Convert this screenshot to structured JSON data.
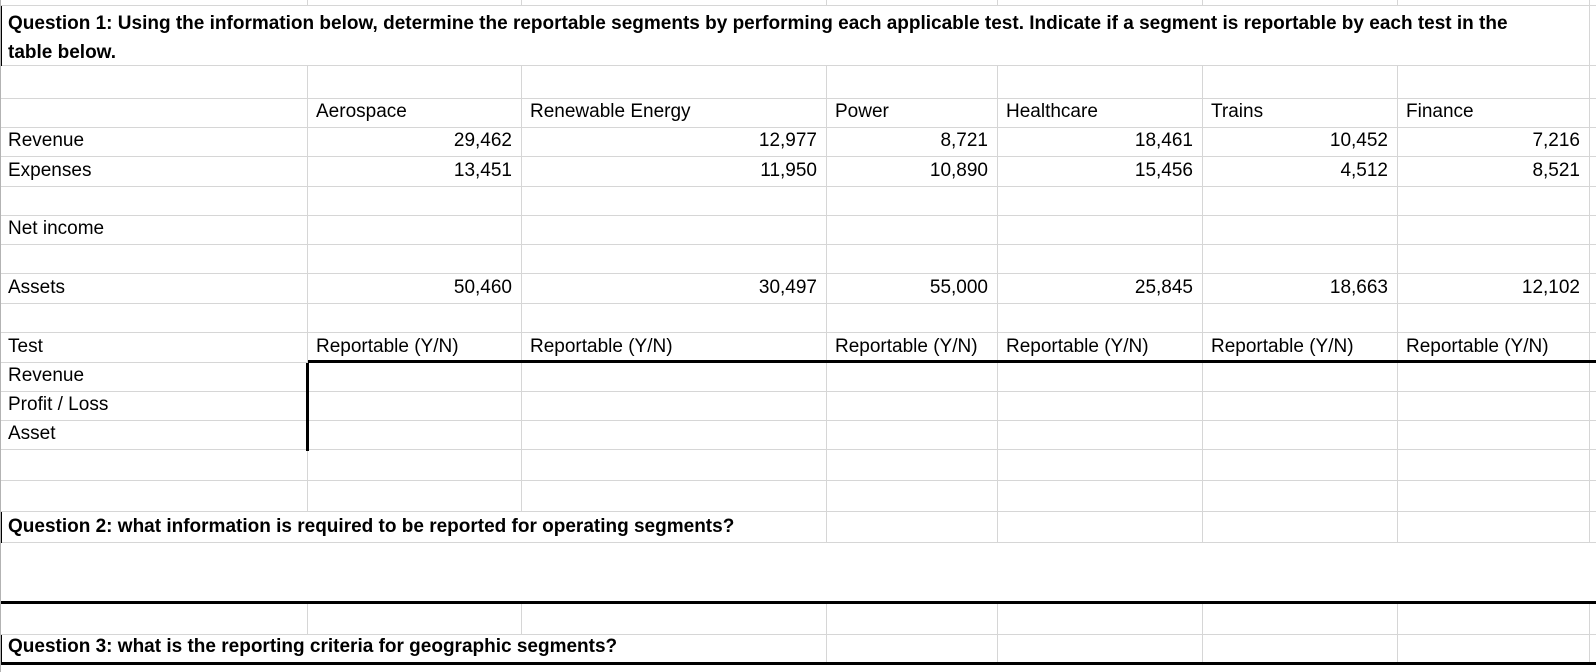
{
  "questions": {
    "q1_line1": "Question 1: Using the information below, determine the reportable segments by performing each applicable test. Indicate if a segment is reportable by each test in the",
    "q1_line2": "table below.",
    "q2": "Question 2: what information is required to be reported for operating segments?",
    "q3": "Question 3: what is the reporting criteria for geographic segments?"
  },
  "segments": [
    "Aerospace",
    "Renewable Energy",
    "Power",
    "Healthcare",
    "Trains",
    "Finance"
  ],
  "financials": {
    "revenue": {
      "label": "Revenue",
      "values": [
        "29,462",
        "12,977",
        "8,721",
        "18,461",
        "10,452",
        "7,216"
      ]
    },
    "expenses": {
      "label": "Expenses",
      "values": [
        "13,451",
        "11,950",
        "10,890",
        "15,456",
        "4,512",
        "8,521"
      ]
    },
    "net_income": {
      "label": "Net income",
      "values": [
        "",
        "",
        "",
        "",
        "",
        ""
      ]
    },
    "assets": {
      "label": "Assets",
      "values": [
        "50,460",
        "30,497",
        "55,000",
        "25,845",
        "18,663",
        "12,102"
      ]
    }
  },
  "test_table": {
    "title": "Test",
    "reportable_header": "Reportable (Y/N)",
    "row_labels": [
      "Revenue",
      "Profit / Loss",
      "Asset"
    ],
    "answers": [
      [
        "",
        "",
        "",
        "",
        "",
        ""
      ],
      [
        "",
        "",
        "",
        "",
        "",
        ""
      ],
      [
        "",
        "",
        "",
        "",
        "",
        ""
      ]
    ]
  },
  "colors": {
    "gridline": "#d6d6d6",
    "thick_border": "#000000",
    "background": "#ffffff"
  }
}
